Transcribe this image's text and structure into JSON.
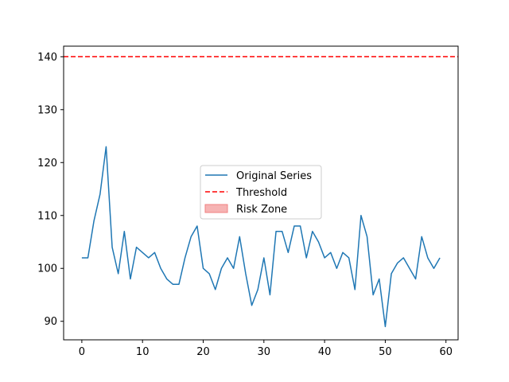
{
  "chart_data": {
    "type": "line",
    "title": "",
    "xlabel": "",
    "ylabel": "",
    "xlim": [
      -3,
      62
    ],
    "ylim": [
      86.5,
      142
    ],
    "xticks": [
      0,
      10,
      20,
      30,
      40,
      50,
      60
    ],
    "yticks": [
      90,
      100,
      110,
      120,
      130,
      140
    ],
    "grid": false,
    "legend_position": "center",
    "series": [
      {
        "name": "Original Series",
        "color": "#1f77b4",
        "style": "solid",
        "x": [
          0,
          1,
          2,
          3,
          4,
          5,
          6,
          7,
          8,
          9,
          10,
          11,
          12,
          13,
          14,
          15,
          16,
          17,
          18,
          19,
          20,
          21,
          22,
          23,
          24,
          25,
          26,
          27,
          28,
          29,
          30,
          31,
          32,
          33,
          34,
          35,
          36,
          37,
          38,
          39,
          40,
          41,
          42,
          43,
          44,
          45,
          46,
          47,
          48,
          49,
          50,
          51,
          52,
          53,
          54,
          55,
          56,
          57,
          58,
          59
        ],
        "values": [
          102,
          102,
          109,
          114,
          123,
          104,
          99,
          107,
          98,
          104,
          103,
          102,
          103,
          100,
          98,
          97,
          97,
          102,
          106,
          108,
          100,
          99,
          96,
          100,
          102,
          100,
          106,
          99,
          93,
          96,
          102,
          95,
          107,
          107,
          103,
          108,
          108,
          102,
          107,
          105,
          102,
          103,
          100,
          103,
          102,
          96,
          110,
          106,
          95,
          98,
          89,
          99,
          101,
          102,
          100,
          98,
          106,
          102,
          100,
          102
        ]
      }
    ],
    "threshold": {
      "name": "Threshold",
      "value": 140,
      "color": "#ff0000",
      "style": "dashed"
    },
    "risk_zone": {
      "name": "Risk Zone",
      "color": "#f08080",
      "visible_area": false
    }
  }
}
